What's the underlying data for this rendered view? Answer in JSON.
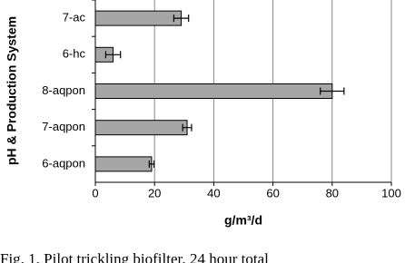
{
  "chart_data": {
    "type": "bar",
    "orientation": "horizontal",
    "y_label": "pH & Production System",
    "x_label": "g/m³/d",
    "categories": [
      "7-ac",
      "6-hc",
      "8-aqpon",
      "7-aqpon",
      "6-aqpon"
    ],
    "values": [
      29,
      6,
      80,
      31,
      19
    ],
    "errors": [
      2.5,
      2.5,
      4,
      1.5,
      0.8
    ],
    "color": "#a6a6a6",
    "xlim": [
      0,
      100
    ],
    "xticks": [
      0,
      20,
      40,
      60,
      80,
      100
    ],
    "grid": true
  },
  "caption": "Fig. 1.  Pilot trickling biofilter, 24 hour total"
}
